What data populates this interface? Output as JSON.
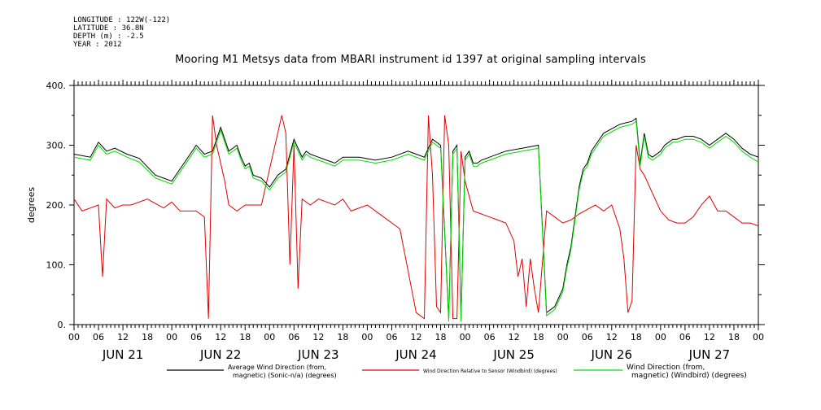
{
  "meta_lines": [
    "LONGITUDE : 122W(-122)",
    "LATITUDE : 36.8N",
    "DEPTH (m) : -2.5",
    "YEAR : 2012"
  ],
  "chart_data": {
    "type": "line",
    "title": "Mooring M1 Metsys data from MBARI instrument id 1397 at original sampling intervals",
    "ylabel": "degrees",
    "xlabel": "",
    "ylim": [
      0,
      400
    ],
    "yticks": [
      0,
      100,
      200,
      300,
      400
    ],
    "ytick_labels": [
      "0.",
      "100.",
      "200.",
      "300.",
      "400."
    ],
    "xlim_hours": [
      0,
      168
    ],
    "hour_tick_labels": [
      "00",
      "06",
      "12",
      "18",
      "00",
      "06",
      "12",
      "18",
      "00",
      "06",
      "12",
      "18",
      "00",
      "06",
      "12",
      "18",
      "00",
      "06",
      "12",
      "18",
      "00",
      "06",
      "12",
      "18",
      "00",
      "06",
      "12",
      "18",
      "00"
    ],
    "day_labels": [
      "JUN 21",
      "JUN 22",
      "JUN 23",
      "JUN 24",
      "JUN 25",
      "JUN 26",
      "JUN 27"
    ],
    "series": [
      {
        "name": "Average Wind Direction (from, magnetic) (Sonic-n/a) (degrees)",
        "color": "#000000",
        "x_hours": [
          0,
          4,
          6,
          8,
          10,
          13,
          16,
          20,
          24,
          27,
          30,
          32,
          34,
          36,
          38,
          40,
          41,
          42,
          43,
          44,
          46,
          48,
          50,
          52,
          54,
          56,
          57,
          58,
          60,
          62,
          64,
          66,
          70,
          74,
          78,
          82,
          86,
          88,
          90,
          92,
          93,
          94,
          95,
          96,
          97,
          98,
          99,
          100,
          102,
          106,
          110,
          114,
          116,
          118,
          120,
          121,
          122,
          123,
          124,
          125,
          126,
          127,
          128,
          130,
          134,
          137,
          138,
          139,
          140,
          141,
          142,
          144,
          145,
          146,
          147,
          148,
          150,
          152,
          154,
          156,
          158,
          160,
          162,
          164,
          166,
          168
        ],
        "y": [
          285,
          280,
          305,
          290,
          295,
          285,
          278,
          250,
          240,
          270,
          300,
          285,
          290,
          330,
          290,
          300,
          280,
          265,
          270,
          250,
          245,
          230,
          250,
          260,
          310,
          280,
          290,
          285,
          280,
          275,
          270,
          280,
          280,
          275,
          280,
          290,
          280,
          310,
          300,
          10,
          290,
          300,
          10,
          280,
          290,
          270,
          270,
          275,
          280,
          290,
          295,
          300,
          20,
          30,
          60,
          100,
          130,
          180,
          230,
          260,
          270,
          290,
          300,
          320,
          335,
          340,
          345,
          270,
          320,
          285,
          280,
          290,
          300,
          305,
          310,
          310,
          315,
          315,
          310,
          300,
          310,
          320,
          310,
          295,
          285,
          280
        ]
      },
      {
        "name": "Wind Direction Relative to Sensor (Windbird) (degrees)",
        "color": "#e00000",
        "x_hours": [
          0,
          2,
          4,
          6,
          7,
          8,
          10,
          12,
          14,
          18,
          22,
          24,
          26,
          30,
          32,
          33,
          34,
          35,
          36,
          37,
          38,
          40,
          42,
          46,
          50,
          51,
          52,
          53,
          54,
          55,
          56,
          58,
          60,
          64,
          66,
          68,
          72,
          76,
          80,
          84,
          86,
          87,
          88,
          89,
          90,
          91,
          92,
          93,
          94,
          95,
          96,
          98,
          102,
          104,
          106,
          108,
          109,
          110,
          111,
          112,
          113,
          114,
          116,
          118,
          120,
          122,
          124,
          128,
          130,
          132,
          134,
          135,
          136,
          137,
          138,
          139,
          140,
          142,
          144,
          146,
          148,
          150,
          152,
          154,
          156,
          158,
          160,
          162,
          164,
          166,
          168
        ],
        "y": [
          210,
          190,
          195,
          200,
          80,
          210,
          195,
          200,
          200,
          210,
          195,
          205,
          190,
          190,
          180,
          10,
          350,
          300,
          270,
          240,
          200,
          190,
          200,
          200,
          320,
          350,
          320,
          100,
          300,
          60,
          210,
          200,
          210,
          200,
          210,
          190,
          200,
          180,
          160,
          20,
          10,
          350,
          250,
          30,
          20,
          350,
          300,
          10,
          10,
          290,
          240,
          190,
          180,
          175,
          170,
          140,
          80,
          110,
          30,
          110,
          60,
          20,
          190,
          180,
          170,
          175,
          185,
          200,
          190,
          200,
          160,
          110,
          20,
          40,
          300,
          260,
          250,
          220,
          190,
          175,
          170,
          170,
          180,
          200,
          215,
          190,
          190,
          180,
          170,
          170,
          165
        ]
      },
      {
        "name": "Wind Direction (from, magnetic) (Windbird) (degrees)",
        "color": "#00dd00",
        "x_hours": [
          0,
          4,
          6,
          8,
          10,
          13,
          16,
          20,
          24,
          27,
          30,
          32,
          34,
          36,
          38,
          40,
          41,
          42,
          43,
          44,
          46,
          48,
          50,
          52,
          54,
          56,
          57,
          58,
          60,
          62,
          64,
          66,
          70,
          74,
          78,
          82,
          86,
          88,
          90,
          92,
          93,
          94,
          95,
          96,
          97,
          98,
          99,
          100,
          102,
          106,
          110,
          114,
          116,
          118,
          120,
          121,
          122,
          123,
          124,
          125,
          126,
          127,
          128,
          130,
          134,
          137,
          138,
          139,
          140,
          141,
          142,
          144,
          145,
          146,
          147,
          148,
          150,
          152,
          154,
          156,
          158,
          160,
          162,
          164,
          166,
          168
        ],
        "y": [
          280,
          275,
          300,
          285,
          290,
          280,
          272,
          245,
          235,
          265,
          295,
          280,
          285,
          325,
          285,
          295,
          275,
          260,
          265,
          245,
          240,
          225,
          245,
          255,
          305,
          275,
          285,
          280,
          275,
          270,
          265,
          275,
          275,
          270,
          275,
          285,
          275,
          305,
          295,
          5,
          285,
          295,
          5,
          275,
          285,
          265,
          265,
          270,
          275,
          285,
          290,
          295,
          15,
          25,
          55,
          95,
          125,
          175,
          225,
          255,
          265,
          285,
          295,
          315,
          330,
          335,
          340,
          265,
          315,
          280,
          275,
          285,
          295,
          300,
          305,
          305,
          310,
          310,
          305,
          295,
          305,
          315,
          305,
          290,
          280,
          272
        ]
      }
    ],
    "legend": [
      {
        "line1": "Average Wind Direction (from,",
        "line2": "magnetic) (Sonic-n/a) (degrees)",
        "color": "#000000"
      },
      {
        "line1": "Wind Direction Relative to Sensor (Windbird) (degrees)",
        "line2": "",
        "color": "#e00000"
      },
      {
        "line1": "Wind Direction (from,",
        "line2": "magnetic) (Windbird) (degrees)",
        "color": "#00dd00"
      }
    ]
  }
}
